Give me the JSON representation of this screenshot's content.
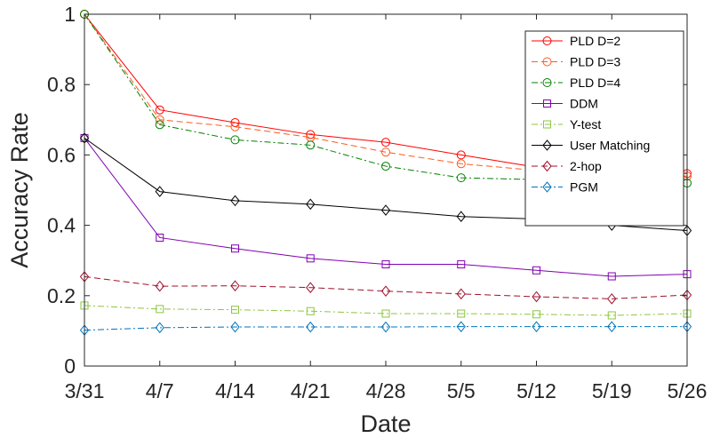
{
  "chart_data": {
    "type": "line",
    "title": "",
    "xlabel": "Date",
    "ylabel": "Accuracy Rate",
    "categories": [
      "3/31",
      "4/7",
      "4/14",
      "4/21",
      "4/28",
      "5/5",
      "5/12",
      "5/19",
      "5/26"
    ],
    "ylim": [
      0,
      1
    ],
    "yticks": [
      "0",
      "0.2",
      "0.4",
      "0.6",
      "0.8",
      "1"
    ],
    "ytick_values": [
      0,
      0.2,
      0.4,
      0.6,
      0.8,
      1
    ],
    "grid": false,
    "legend_position": "top-right",
    "series": [
      {
        "name": "PLD D=2",
        "color": "#ff0000",
        "dash": "solid",
        "marker": "circle",
        "values": [
          1.0,
          0.728,
          0.692,
          0.658,
          0.636,
          0.6,
          0.565,
          0.547,
          0.547
        ]
      },
      {
        "name": "PLD D=3",
        "color": "#ff5a1f",
        "dash": "dashed",
        "marker": "circle",
        "values": [
          1.0,
          0.7,
          0.68,
          0.65,
          0.608,
          0.575,
          0.556,
          0.54,
          0.54
        ]
      },
      {
        "name": "PLD D=4",
        "color": "#008000",
        "dash": "dashdot",
        "marker": "circle",
        "values": [
          1.0,
          0.686,
          0.643,
          0.628,
          0.568,
          0.535,
          0.53,
          0.528,
          0.52
        ]
      },
      {
        "name": "DDM",
        "color": "#8000b0",
        "dash": "solid",
        "marker": "square",
        "values": [
          0.648,
          0.365,
          0.334,
          0.306,
          0.289,
          0.289,
          0.272,
          0.255,
          0.261
        ]
      },
      {
        "name": "Y-test",
        "color": "#8cc63f",
        "dash": "dashdot",
        "marker": "square",
        "values": [
          0.172,
          0.162,
          0.16,
          0.156,
          0.149,
          0.149,
          0.147,
          0.144,
          0.149
        ]
      },
      {
        "name": "User Matching",
        "color": "#000000",
        "dash": "solid",
        "marker": "diamond",
        "values": [
          0.648,
          0.496,
          0.47,
          0.46,
          0.443,
          0.425,
          0.418,
          0.4,
          0.385
        ]
      },
      {
        "name": "2-hop",
        "color": "#a0102a",
        "dash": "dashed",
        "marker": "diamond",
        "values": [
          0.254,
          0.227,
          0.228,
          0.223,
          0.213,
          0.205,
          0.197,
          0.191,
          0.202
        ]
      },
      {
        "name": "PGM",
        "color": "#0072bd",
        "dash": "dashdot",
        "marker": "diamond",
        "values": [
          0.102,
          0.109,
          0.111,
          0.111,
          0.111,
          0.112,
          0.112,
          0.112,
          0.112
        ]
      }
    ]
  }
}
